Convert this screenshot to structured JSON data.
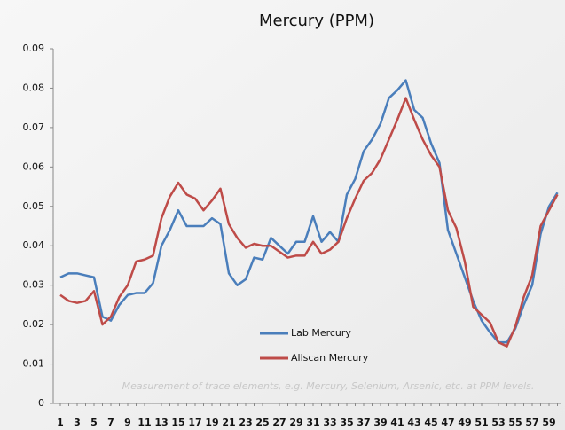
{
  "chart_data": {
    "type": "line",
    "title": "Mercury (PPM)",
    "annotation": "Measurement of trace elements, e.g. Mercury, Selenium, Arsenic, etc. at PPM levels.",
    "categories": [
      "1",
      null,
      "3",
      null,
      "5",
      null,
      "7",
      null,
      "9",
      null,
      "11",
      null,
      "13",
      null,
      "15",
      null,
      "17",
      null,
      "19",
      null,
      "21",
      null,
      "23",
      null,
      "25",
      null,
      "27",
      null,
      "29",
      null,
      "31",
      null,
      "33",
      null,
      "35",
      null,
      "37",
      null,
      "39",
      null,
      "41",
      null,
      "43",
      null,
      "45",
      null,
      "47",
      null,
      "49",
      null,
      "51",
      null,
      "53",
      null,
      "55",
      null,
      "57",
      null,
      "59",
      null
    ],
    "series": [
      {
        "name": "Lab Mercury",
        "color": "#4a7ebb",
        "values": [
          0.032,
          0.033,
          0.033,
          0.0325,
          0.032,
          0.022,
          0.021,
          0.025,
          0.0275,
          0.028,
          0.028,
          0.0305,
          0.04,
          0.044,
          0.049,
          0.045,
          0.045,
          0.045,
          0.047,
          0.0455,
          0.033,
          0.03,
          0.0315,
          0.037,
          0.0365,
          0.042,
          0.04,
          0.038,
          0.041,
          0.041,
          0.0475,
          0.041,
          0.0435,
          0.041,
          0.053,
          0.057,
          0.064,
          0.067,
          0.071,
          0.0775,
          0.0795,
          0.082,
          0.0745,
          0.0725,
          0.066,
          0.061,
          0.044,
          0.038,
          0.032,
          0.026,
          0.021,
          0.018,
          0.0155,
          0.0155,
          0.019,
          0.025,
          0.03,
          0.043,
          0.05,
          0.0535
        ]
      },
      {
        "name": "Allscan Mercury",
        "color": "#be4b48",
        "values": [
          0.0275,
          0.026,
          0.0255,
          0.026,
          0.0285,
          0.02,
          0.022,
          0.027,
          0.03,
          0.036,
          0.0365,
          0.0375,
          0.047,
          0.0525,
          0.056,
          0.053,
          0.052,
          0.049,
          0.0515,
          0.0545,
          0.0455,
          0.042,
          0.0395,
          0.0405,
          0.04,
          0.04,
          0.0385,
          0.037,
          0.0375,
          0.0375,
          0.041,
          0.038,
          0.039,
          0.041,
          0.047,
          0.052,
          0.0565,
          0.0585,
          0.062,
          0.067,
          0.072,
          0.0775,
          0.072,
          0.067,
          0.063,
          0.06,
          0.049,
          0.0445,
          0.036,
          0.0245,
          0.0225,
          0.0205,
          0.0155,
          0.0145,
          0.0195,
          0.027,
          0.0325,
          0.045,
          0.049,
          0.053
        ]
      }
    ],
    "ylim": [
      0,
      0.09
    ],
    "yticks": [
      0,
      0.01,
      0.02,
      0.03,
      0.04,
      0.05,
      0.06,
      0.07,
      0.08,
      0.09
    ],
    "grid": false
  }
}
